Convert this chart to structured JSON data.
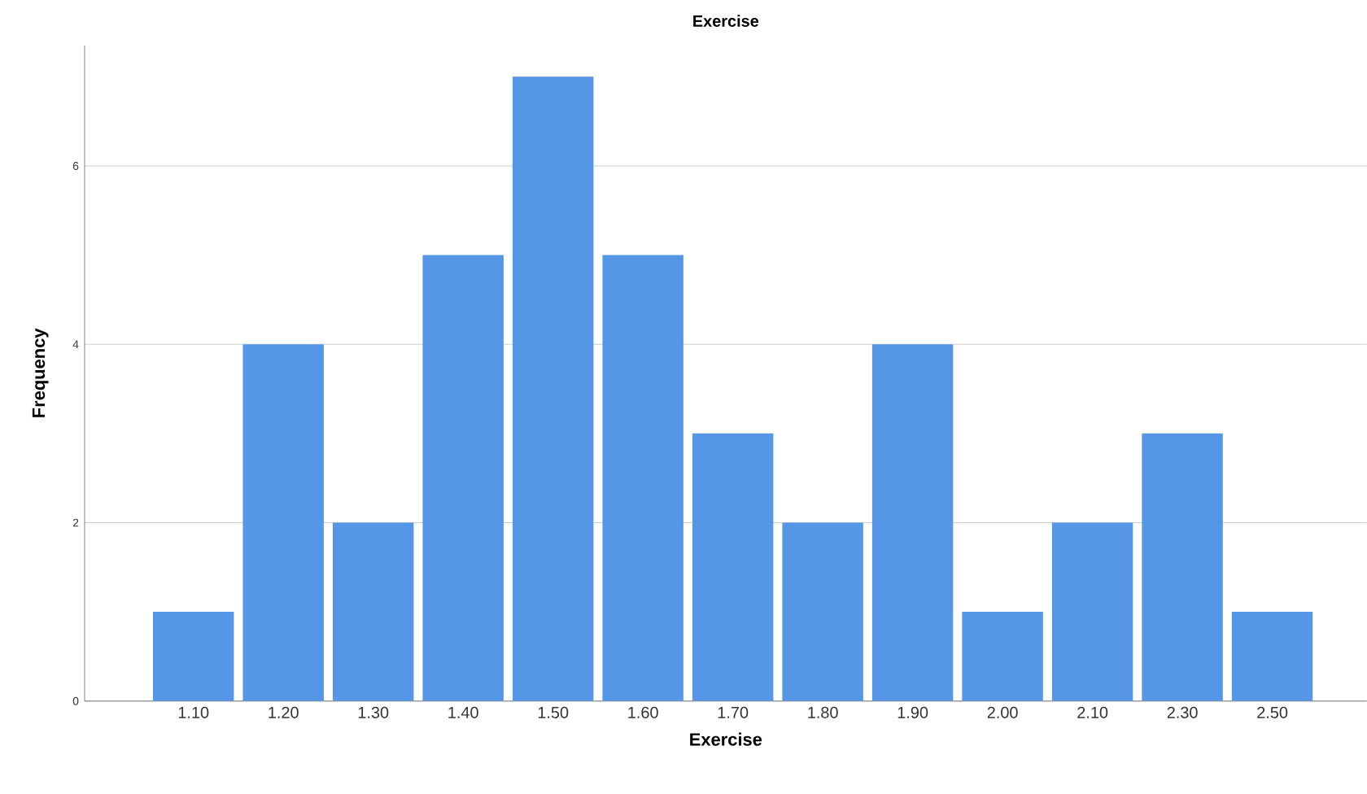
{
  "chart_data": {
    "type": "bar",
    "title": "Exercise",
    "xlabel": "Exercise",
    "ylabel": "Frequency",
    "categories": [
      "1.10",
      "1.20",
      "1.30",
      "1.40",
      "1.50",
      "1.60",
      "1.70",
      "1.80",
      "1.90",
      "2.00",
      "2.10",
      "2.30",
      "2.50"
    ],
    "values": [
      1,
      4,
      2,
      5,
      7,
      5,
      3,
      2,
      4,
      1,
      2,
      3,
      1
    ],
    "color": "#5596e6",
    "ylim": [
      0,
      7.35
    ],
    "yticks": [
      0,
      2,
      4,
      6
    ],
    "grid": "y"
  }
}
